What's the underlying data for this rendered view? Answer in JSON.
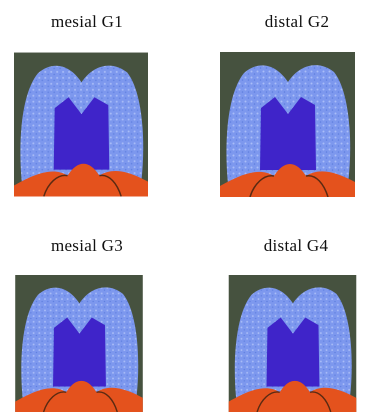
{
  "panels": [
    {
      "label": "mesial G1"
    },
    {
      "label": "distal G2"
    },
    {
      "label": "mesial G3"
    },
    {
      "label": "distal G4"
    }
  ]
}
